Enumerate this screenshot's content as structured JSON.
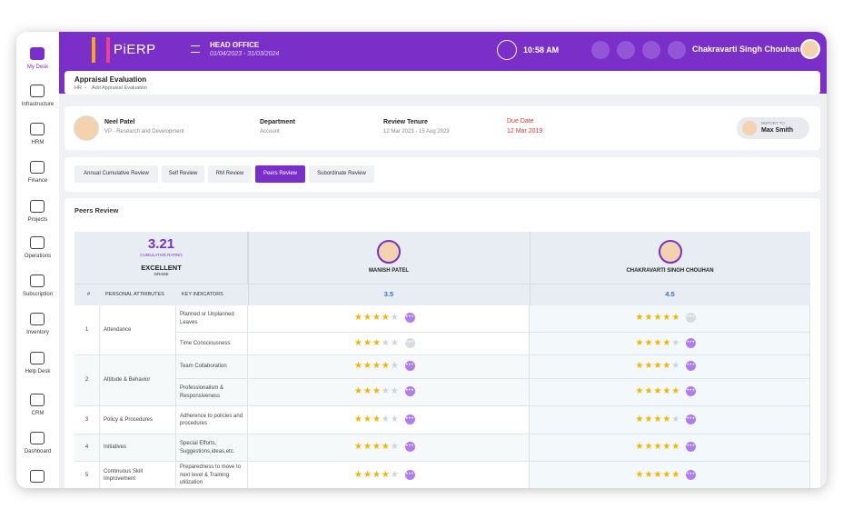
{
  "sidebar": {
    "items": [
      "My Desk",
      "Infrastructure",
      "HRM",
      "Finance",
      "Projects",
      "Operations",
      "Subscription",
      "Inventory",
      "Help Desk",
      "CRM",
      "Dashboard"
    ]
  },
  "header": {
    "brand": "PiERP",
    "office": "HEAD OFFICE",
    "period": "01/04/2023 - 31/03/2024",
    "time": "10:58 AM",
    "user": "Chakravarti Singh Chouhan"
  },
  "page": {
    "title": "Appraisal Evaluation",
    "breadcrumb": [
      "HR",
      "Add Appraisal Evaluation"
    ]
  },
  "profile": {
    "name": "Neel Patel",
    "role": "VP - Research and Development",
    "department_label": "Department",
    "department": "Account",
    "tenure_label": "Review Tenure",
    "tenure": "12 Mar 2023 - 15 Aug 2023",
    "due_label": "Due Date",
    "due": "12 Mar 2019",
    "report_label": "REPORT TO",
    "report_to": "Max Smith"
  },
  "tabs": {
    "items": [
      "Annual Cumulative Review",
      "Self Review",
      "RM Review",
      "Peers Review",
      "Subordinate Review"
    ],
    "active": 3
  },
  "section": {
    "title": "Peers Review"
  },
  "summary": {
    "rating": 3.21,
    "rating_label": "CUMULATIVE RATING",
    "grade": "EXCELLENT",
    "grade_label": "GRADE"
  },
  "reviewers": [
    {
      "name": "MANISH PATEL",
      "score": 3.5
    },
    {
      "name": "CHAKRAVARTI SINGH CHOUHAN",
      "score": 4.5
    }
  ],
  "columns": [
    "#",
    "PERSONAL ATTRIBUTES",
    "KEY INDICATORS"
  ],
  "rows": [
    {
      "number": 1,
      "attribute": "Attendance",
      "indicators": [
        {
          "label": "Planned or Unplanned Leaves",
          "ratings": [
            4,
            5
          ],
          "comments": [
            true,
            false
          ]
        },
        {
          "label": "Time Consciousness",
          "ratings": [
            3,
            4
          ],
          "comments": [
            false,
            true
          ]
        }
      ]
    },
    {
      "number": 2,
      "attribute": "Attitude & Behavior",
      "indicators": [
        {
          "label": "Team Collaboration",
          "ratings": [
            4,
            4
          ],
          "comments": [
            true,
            true
          ]
        },
        {
          "label": "Professionalism & Responsiveness",
          "ratings": [
            3,
            5
          ],
          "comments": [
            true,
            true
          ]
        }
      ]
    },
    {
      "number": 3,
      "attribute": "Policy & Procedures",
      "indicators": [
        {
          "label": "Adherence to policies and procedures",
          "ratings": [
            3,
            4
          ],
          "comments": [
            true,
            true
          ]
        }
      ]
    },
    {
      "number": 4,
      "attribute": "Initiatives",
      "indicators": [
        {
          "label": "Special Efforts, Suggestions,ideas,etc.",
          "ratings": [
            4,
            5
          ],
          "comments": [
            true,
            true
          ]
        }
      ]
    },
    {
      "number": 5,
      "attribute": "Continuous Skill Improvement",
      "indicators": [
        {
          "label": "Preparedness to move to next level & Training utilization",
          "ratings": [
            4,
            5
          ],
          "comments": [
            true,
            true
          ]
        }
      ]
    }
  ]
}
